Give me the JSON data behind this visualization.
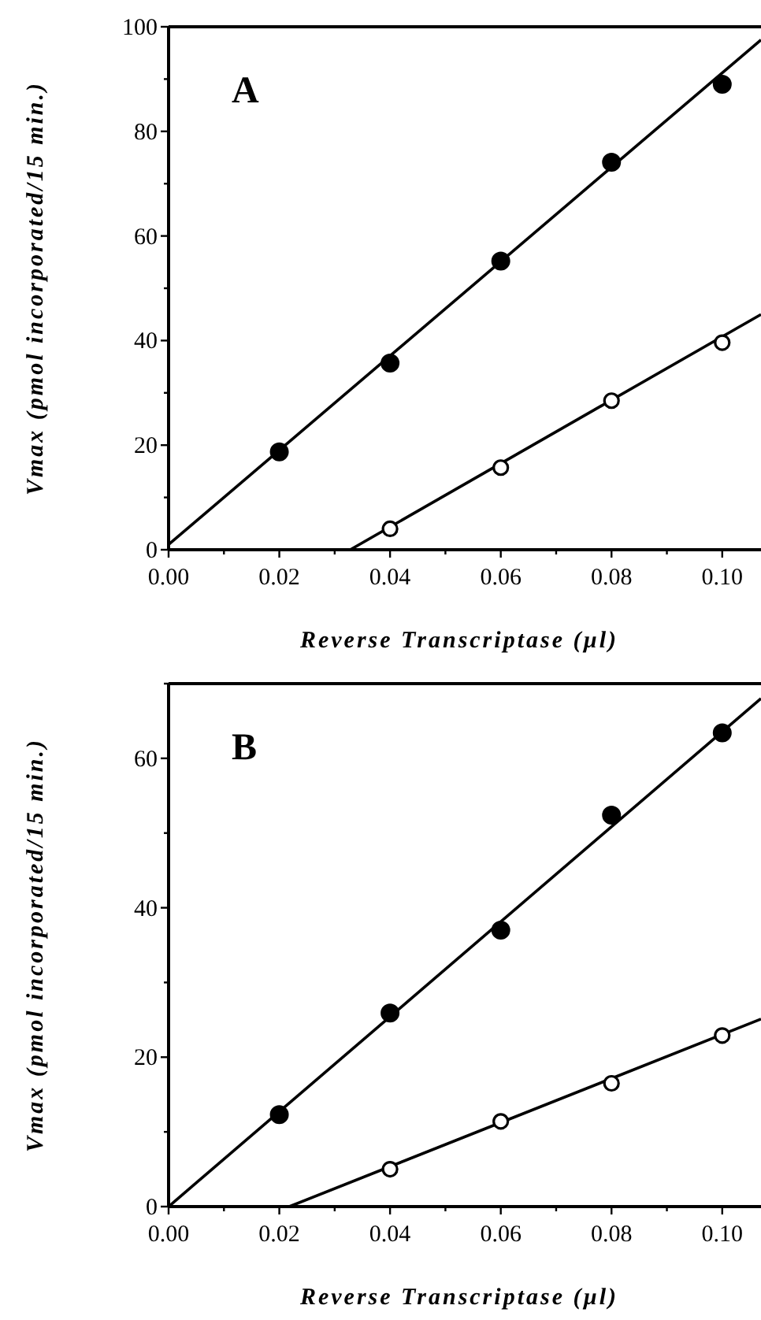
{
  "chart_data": [
    {
      "type": "scatter",
      "xlabel": "Reverse Transcriptase (µl)",
      "ylabel": "Vmax (pmol incorporated/15 min.)",
      "annotations": [
        "A"
      ],
      "xlim": [
        0,
        0.107
      ],
      "ylim": [
        0,
        100
      ],
      "xticks": [
        {
          "value": 0,
          "label": "0.00"
        },
        {
          "value": 0.01,
          "label": null
        },
        {
          "value": 0.02,
          "label": "0.02"
        },
        {
          "value": 0.03,
          "label": null
        },
        {
          "value": 0.04,
          "label": "0.04"
        },
        {
          "value": 0.05,
          "label": null
        },
        {
          "value": 0.06,
          "label": "0.06"
        },
        {
          "value": 0.07,
          "label": null
        },
        {
          "value": 0.08,
          "label": "0.08"
        },
        {
          "value": 0.09,
          "label": null
        },
        {
          "value": 0.1,
          "label": "0.10"
        }
      ],
      "yticks": [
        0,
        {
          "value": 10,
          "label": null
        },
        20,
        {
          "value": 30,
          "label": null
        },
        40,
        {
          "value": 50,
          "label": null
        },
        60,
        {
          "value": 70,
          "label": null
        },
        80,
        {
          "value": 90,
          "label": null
        },
        100
      ],
      "grid": false,
      "series": [
        {
          "marker": "circle",
          "color": "#000000",
          "x": [
            0.02,
            0.04,
            0.06,
            0.08,
            0.1
          ],
          "values": [
            18.7,
            35.7,
            55.2,
            74.1,
            89.0
          ]
        },
        {
          "marker": "circle",
          "color": "#000000",
          "x": [
            0.04,
            0.06,
            0.08,
            0.1
          ],
          "values": [
            4.0,
            15.7,
            28.5,
            39.6
          ]
        },
        {
          "type": "line",
          "marker": "none",
          "color": "#000000",
          "x": [
            0,
            0.107
          ],
          "values": [
            1,
            97.5
          ]
        },
        {
          "type": "line",
          "marker": "none",
          "color": "#000000",
          "x": [
            0.0328,
            0.107
          ],
          "values": [
            0,
            45
          ]
        }
      ]
    },
    {
      "type": "scatter",
      "xlabel": "Reverse Transcriptase (µl)",
      "ylabel": "Vmax (pmol incorporated/15 min.)",
      "annotations": [
        "B"
      ],
      "xlim": [
        0,
        0.107
      ],
      "ylim": [
        0,
        70
      ],
      "xticks": [
        {
          "value": 0,
          "label": "0.00"
        },
        {
          "value": 0.01,
          "label": null
        },
        {
          "value": 0.02,
          "label": "0.02"
        },
        {
          "value": 0.03,
          "label": null
        },
        {
          "value": 0.04,
          "label": "0.04"
        },
        {
          "value": 0.05,
          "label": null
        },
        {
          "value": 0.06,
          "label": "0.06"
        },
        {
          "value": 0.07,
          "label": null
        },
        {
          "value": 0.08,
          "label": "0.08"
        },
        {
          "value": 0.09,
          "label": null
        },
        {
          "value": 0.1,
          "label": "0.10"
        }
      ],
      "yticks": [
        0,
        {
          "value": 10,
          "label": null
        },
        20,
        {
          "value": 30,
          "label": null
        },
        40,
        {
          "value": 50,
          "label": null
        },
        60,
        {
          "value": 70,
          "label": null
        }
      ],
      "grid": false,
      "series": [
        {
          "marker": "circle",
          "color": "#000000",
          "x": [
            0.02,
            0.04,
            0.06,
            0.08,
            0.1
          ],
          "values": [
            12.3,
            25.9,
            37.0,
            52.4,
            63.4
          ]
        },
        {
          "marker": "circle",
          "color": "#000000",
          "x": [
            0.04,
            0.06,
            0.08,
            0.1
          ],
          "values": [
            5.0,
            11.4,
            16.5,
            22.9
          ]
        },
        {
          "type": "line",
          "marker": "none",
          "color": "#000000",
          "x": [
            0,
            0.107
          ],
          "values": [
            0,
            68.0
          ]
        },
        {
          "type": "line",
          "marker": "none",
          "color": "#000000",
          "x": [
            0.0218,
            0.107
          ],
          "values": [
            0,
            25.1
          ]
        }
      ]
    }
  ]
}
